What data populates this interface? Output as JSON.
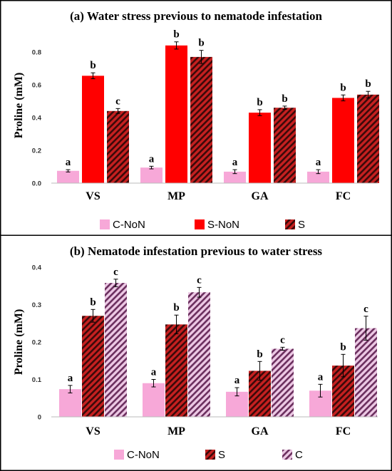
{
  "chart_data": [
    {
      "type": "bar",
      "title": "(a) Water stress previous to nematode infestation",
      "ylabel": "Proline (mM)",
      "xlabel": "",
      "ylim": [
        0,
        0.9
      ],
      "yticks": [
        "0.0",
        "0.2",
        "0.4",
        "0.6",
        "0.8"
      ],
      "grid": false,
      "legend_position": "bottom",
      "categories": [
        "VS",
        "MP",
        "GA",
        "FC"
      ],
      "series": [
        {
          "name": "C-NoN",
          "color": "#f7a8d8",
          "pattern": "solid",
          "values": [
            0.075,
            0.095,
            0.07,
            0.07
          ],
          "errors": [
            0.007,
            0.008,
            0.012,
            0.012
          ],
          "labels": [
            "a",
            "a",
            "a",
            "a"
          ]
        },
        {
          "name": "S-NoN",
          "color": "#ff0000",
          "pattern": "solid",
          "values": [
            0.655,
            0.84,
            0.43,
            0.52
          ],
          "errors": [
            0.018,
            0.022,
            0.018,
            0.018
          ],
          "labels": [
            "b",
            "b",
            "b",
            "b"
          ]
        },
        {
          "name": "S",
          "color": "#a31515",
          "pattern": "hatch-dark",
          "values": [
            0.44,
            0.77,
            0.46,
            0.54
          ],
          "errors": [
            0.015,
            0.04,
            0.01,
            0.02
          ],
          "labels": [
            "c",
            "b",
            "b",
            "b"
          ]
        }
      ]
    },
    {
      "type": "bar",
      "title": "(b) Nematode infestation previous to water stress",
      "ylabel": "Proline (mM)",
      "xlabel": "",
      "ylim": [
        0,
        0.4
      ],
      "yticks": [
        "0",
        "0.1",
        "0.2",
        "0.3",
        "0.4"
      ],
      "grid": false,
      "legend_position": "bottom",
      "categories": [
        "VS",
        "MP",
        "GA",
        "FC"
      ],
      "series": [
        {
          "name": "C-NoN",
          "color": "#f7a8d8",
          "pattern": "solid",
          "values": [
            0.074,
            0.09,
            0.067,
            0.07
          ],
          "errors": [
            0.01,
            0.01,
            0.011,
            0.017
          ],
          "labels": [
            "a",
            "a",
            "a",
            "a"
          ]
        },
        {
          "name": "S",
          "color": "#a31515",
          "pattern": "hatch-dark",
          "values": [
            0.27,
            0.247,
            0.123,
            0.137
          ],
          "errors": [
            0.017,
            0.025,
            0.025,
            0.03
          ],
          "labels": [
            "b",
            "b",
            "b",
            "b"
          ]
        },
        {
          "name": "C",
          "color": "#8a4a8a",
          "pattern": "hatch-light",
          "values": [
            0.358,
            0.333,
            0.182,
            0.237
          ],
          "errors": [
            0.01,
            0.013,
            0.004,
            0.032
          ],
          "labels": [
            "c",
            "c",
            "c",
            "c"
          ]
        }
      ]
    }
  ]
}
